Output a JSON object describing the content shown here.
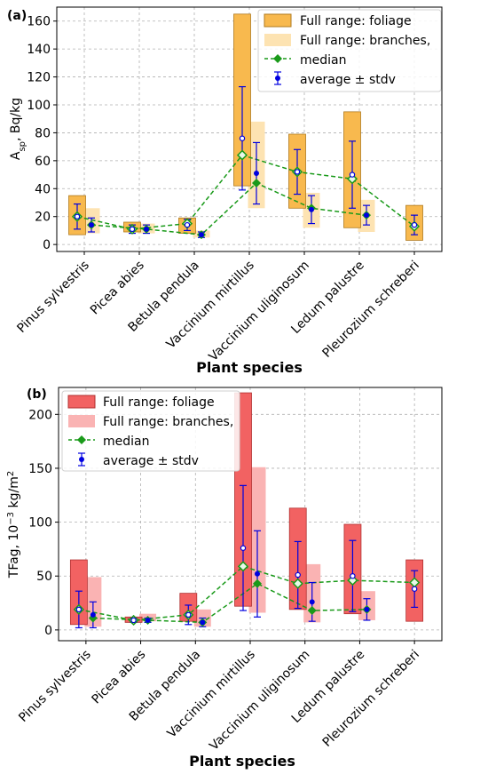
{
  "chart_data": [
    {
      "type": "bar",
      "panel_label": "(a)",
      "categories": [
        "Pinus sylvestris",
        "Picea abies",
        "Betula pendula",
        "Vaccinium mirtillus",
        "Vaccinium uliginosum",
        "Ledum palustre",
        "Pleurozium schreberi"
      ],
      "xlabel": "Plant species",
      "ylabel_main": "A",
      "ylabel_sub": "sp",
      "ylabel_tail": ", Bq/kg",
      "ylim": [
        -5,
        170
      ],
      "yticks": [
        0,
        20,
        40,
        60,
        80,
        100,
        120,
        140,
        160
      ],
      "legend": {
        "placement": "top-right",
        "foliage_range": "Full range: foliage",
        "branches_range": "Full range: branches,",
        "median": "median",
        "average": "average ± stdv"
      },
      "colors": {
        "foliage": "#f8b94e",
        "branches": "#fde3b2",
        "foliage_edge": "#b07a1e"
      },
      "series": [
        {
          "name": "foliage",
          "range_min": [
            7,
            9,
            8,
            42,
            26,
            12,
            3
          ],
          "range_max": [
            35,
            16,
            19,
            165,
            79,
            95,
            28
          ],
          "median": [
            20,
            11,
            15,
            64,
            52,
            47,
            13
          ],
          "average": [
            20,
            11,
            14,
            76,
            52,
            50,
            14
          ],
          "stdv": [
            9,
            3,
            4,
            37,
            16,
            24,
            7
          ]
        },
        {
          "name": "branches",
          "range_min": [
            8,
            8,
            5,
            26,
            12,
            9,
            null
          ],
          "range_max": [
            26,
            15,
            10,
            88,
            37,
            32,
            null
          ],
          "median": [
            14,
            11,
            7,
            44,
            26,
            21,
            null
          ],
          "average": [
            14,
            11,
            7,
            51,
            25,
            21,
            null
          ],
          "stdv": [
            5,
            3,
            2,
            22,
            10,
            7,
            null
          ]
        }
      ]
    },
    {
      "type": "bar",
      "panel_label": "(b)",
      "categories": [
        "Pinus sylvestris",
        "Picea abies",
        "Betula pendula",
        "Vaccinium mirtillus",
        "Vaccinium uliginosum",
        "Ledum palustre",
        "Pleurozium schreberi"
      ],
      "xlabel": "Plant species",
      "ylabel_main": "TFag, 10",
      "ylabel_exp": "−3",
      "ylabel_unit": " kg/m",
      "ylabel_unit_exp": "2",
      "ylim": [
        -10,
        225
      ],
      "yticks": [
        0,
        50,
        100,
        150,
        200
      ],
      "legend": {
        "placement": "top-left",
        "foliage_range": "Full range: foliage",
        "branches_range": "Full range: branches,",
        "median": "median",
        "average": "average ± stdv"
      },
      "colors": {
        "foliage": "#f26262",
        "branches": "#fab3b3",
        "foliage_edge": "#b03030"
      },
      "series": [
        {
          "name": "foliage",
          "range_min": [
            5,
            7,
            8,
            22,
            19,
            15,
            8
          ],
          "range_max": [
            65,
            12,
            34,
            220,
            113,
            98,
            65
          ],
          "median": [
            19,
            9,
            14,
            59,
            43,
            46,
            44
          ],
          "average": [
            19,
            9,
            14,
            76,
            51,
            50,
            38
          ],
          "stdv": [
            17,
            2,
            9,
            58,
            31,
            33,
            17
          ]
        },
        {
          "name": "branches",
          "range_min": [
            3,
            8,
            3,
            16,
            7,
            9,
            null
          ],
          "range_max": [
            49,
            15,
            19,
            151,
            61,
            36,
            null
          ],
          "median": [
            11,
            9,
            7,
            43,
            18,
            19,
            null
          ],
          "average": [
            14,
            9,
            7,
            52,
            26,
            19,
            null
          ],
          "stdv": [
            12,
            2,
            4,
            40,
            18,
            10,
            null
          ]
        }
      ]
    }
  ]
}
